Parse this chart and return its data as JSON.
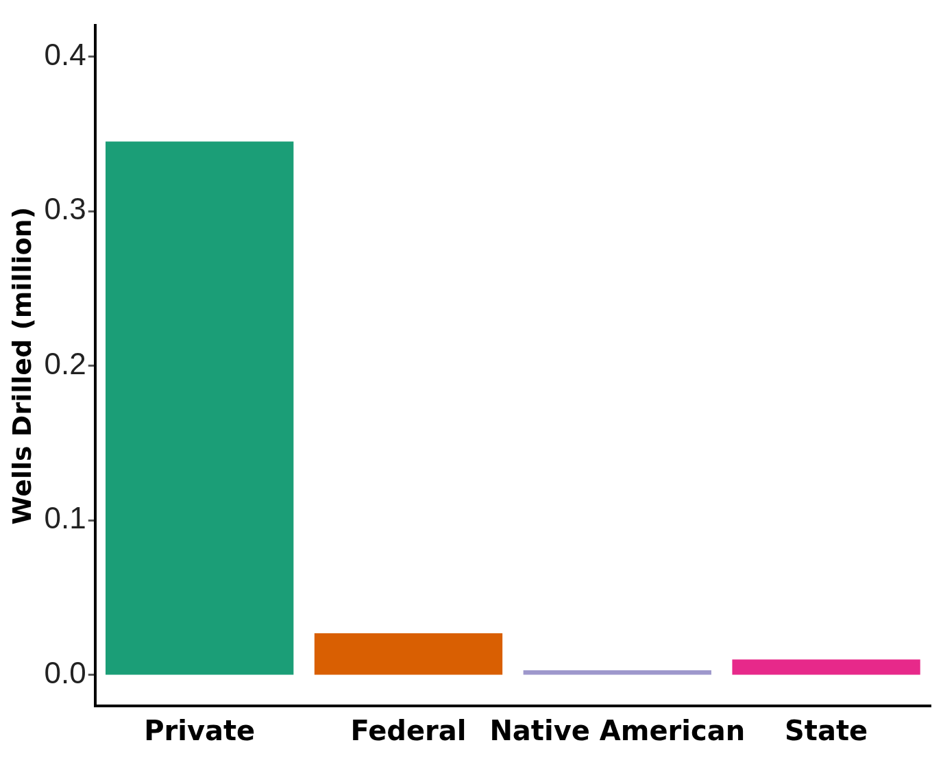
{
  "chart_data": {
    "type": "bar",
    "ylabel": "Wells Drilled (million)",
    "categories": [
      "Private",
      "Federal",
      "Native American",
      "State"
    ],
    "values": [
      0.345,
      0.027,
      0.003,
      0.01
    ],
    "colors": [
      "#1b9e77",
      "#d95f02",
      "#9e98cc",
      "#e7298a"
    ],
    "ylim": [
      -0.02,
      0.42
    ],
    "yticks": [
      {
        "value": 0,
        "label": "0.0"
      },
      {
        "value": 0.1,
        "label": "0.1"
      },
      {
        "value": 0.2,
        "label": "0.2"
      },
      {
        "value": 0.3,
        "label": "0.3"
      },
      {
        "value": 0.4,
        "label": "0.4"
      }
    ],
    "grid": false,
    "legend": false
  }
}
